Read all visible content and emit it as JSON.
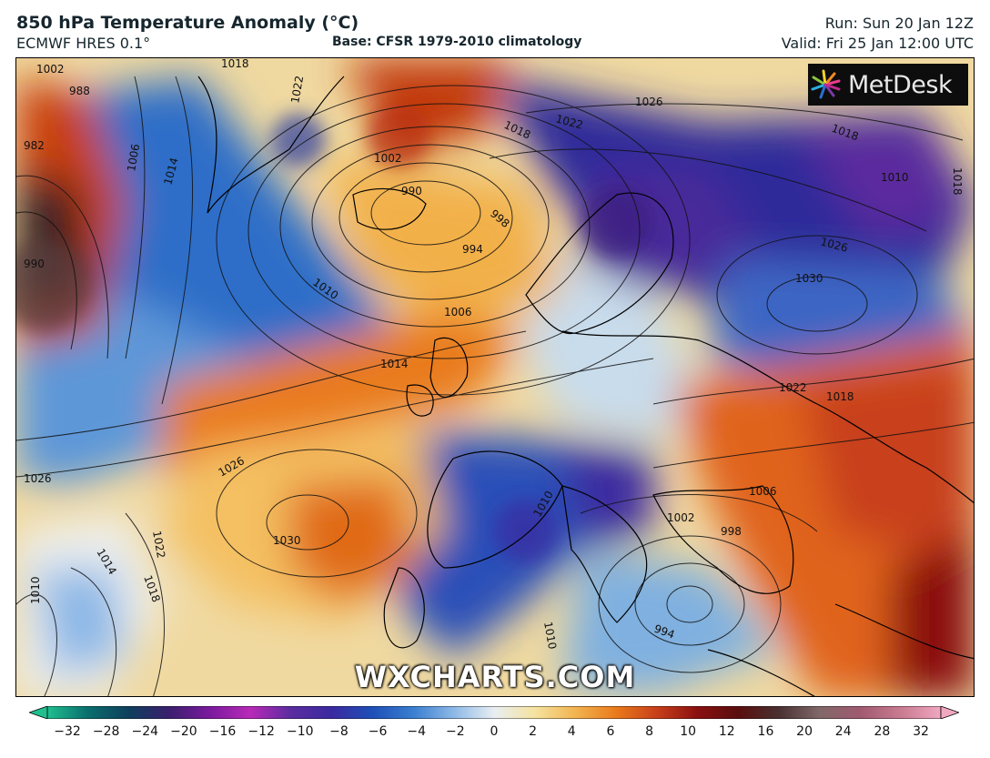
{
  "header": {
    "title": "850 hPa Temperature Anomaly (°C)",
    "model": "ECMWF HRES 0.1°",
    "base": "Base: CFSR 1979-2010 climatology",
    "run": "Run: Sun 20 Jan 12Z",
    "valid": "Valid: Fri 25 Jan 12:00 UTC"
  },
  "logo": {
    "text": "MetDesk",
    "icon": "metdesk-pinwheel-icon"
  },
  "watermark": "WXCHARTS.COM",
  "isobar_labels": [
    "1002",
    "988",
    "982",
    "990",
    "1006",
    "1014",
    "1018",
    "1022",
    "1026",
    "1002",
    "990",
    "998",
    "994",
    "1010",
    "1006",
    "1014",
    "1018",
    "1022",
    "1026",
    "1018",
    "1010",
    "1026",
    "1030",
    "1022",
    "1018",
    "1018",
    "1006",
    "1026",
    "1030",
    "1022",
    "1014",
    "1018",
    "1010",
    "1002",
    "998",
    "994",
    "1010",
    "1010",
    "994"
  ],
  "colorbar": {
    "ticks": [
      "−32",
      "−28",
      "−24",
      "−20",
      "−16",
      "−12",
      "−10",
      "−8",
      "−6",
      "−4",
      "−2",
      "0",
      "2",
      "4",
      "6",
      "8",
      "10",
      "12",
      "16",
      "20",
      "24",
      "28",
      "32"
    ],
    "colors": [
      "#1fbf8f",
      "#0a6e6e",
      "#0e3f5c",
      "#3a1f6e",
      "#7a1a9e",
      "#b82ab8",
      "#5a2ca0",
      "#3a2aa0",
      "#1e4fb8",
      "#3a7ed0",
      "#8cb8e6",
      "#e8eef2",
      "#f5e3a0",
      "#f2b450",
      "#ea7a1c",
      "#c8401a",
      "#8a1010",
      "#5a0e0e",
      "#4a3030",
      "#806868",
      "#a05a70",
      "#c87a90",
      "#f0a8c0"
    ]
  }
}
